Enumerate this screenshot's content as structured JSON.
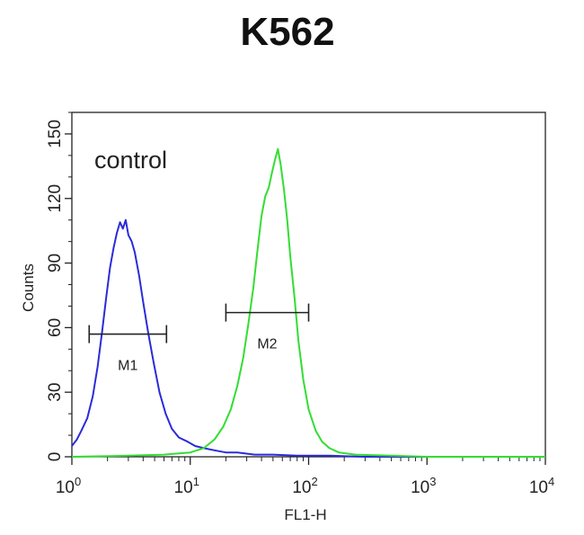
{
  "chart_data": {
    "type": "line",
    "title": "K562",
    "xlabel": "FL1-H",
    "ylabel": "Counts",
    "xscale": "log",
    "xlim": [
      1,
      10000
    ],
    "ylim": [
      0,
      160
    ],
    "x_ticks": [
      {
        "base": "10",
        "exp": "0"
      },
      {
        "base": "10",
        "exp": "1"
      },
      {
        "base": "10",
        "exp": "2"
      },
      {
        "base": "10",
        "exp": "3"
      },
      {
        "base": "10",
        "exp": "4"
      }
    ],
    "y_ticks": [
      0,
      30,
      60,
      90,
      120,
      150
    ],
    "annotation": "control",
    "markers": [
      {
        "label": "M1",
        "x_start": 1.4,
        "x_end": 6.3,
        "y": 57
      },
      {
        "label": "M2",
        "x_start": 20,
        "x_end": 100,
        "y": 67
      }
    ],
    "series": [
      {
        "color": "#2b2bd9",
        "x": [
          1.0,
          1.1,
          1.2,
          1.35,
          1.5,
          1.65,
          1.8,
          1.95,
          2.1,
          2.25,
          2.4,
          2.55,
          2.7,
          2.85,
          3.0,
          3.2,
          3.4,
          3.7,
          4.0,
          4.4,
          4.9,
          5.5,
          6.2,
          7.0,
          8.0,
          9.5,
          11,
          13,
          16,
          20,
          25,
          35,
          50,
          80,
          150,
          300,
          1000,
          10000
        ],
        "y": [
          5,
          8,
          12,
          18,
          28,
          42,
          58,
          74,
          88,
          97,
          104,
          109,
          106,
          110,
          103,
          100,
          95,
          84,
          72,
          58,
          44,
          30,
          20,
          13,
          9,
          7,
          5,
          4,
          3,
          2,
          2,
          1,
          1,
          0.5,
          0.5,
          0,
          0,
          0
        ]
      },
      {
        "color": "#33dd33",
        "x": [
          1.0,
          3.0,
          6.0,
          10,
          13,
          16,
          19,
          22,
          25,
          28,
          31,
          34,
          37,
          40,
          43,
          46,
          49,
          52,
          55,
          58,
          62,
          66,
          70,
          76,
          82,
          90,
          100,
          115,
          130,
          150,
          180,
          250,
          500,
          1000,
          10000
        ],
        "y": [
          0,
          0.5,
          1,
          2,
          4,
          8,
          14,
          22,
          33,
          46,
          62,
          78,
          96,
          112,
          121,
          125,
          132,
          138,
          143,
          136,
          124,
          110,
          93,
          74,
          54,
          36,
          22,
          12,
          7,
          4,
          2,
          1,
          0.5,
          0,
          0
        ]
      }
    ]
  }
}
